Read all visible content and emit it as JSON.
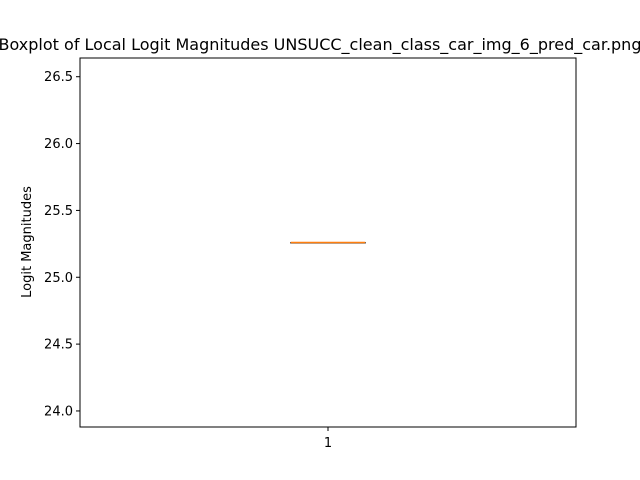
{
  "chart_data": {
    "type": "boxplot",
    "title": "Boxplot of Local Logit Magnitudes UNSUCC_clean_class_car_img_6_pred_car.png",
    "xlabel": "",
    "ylabel": "Logit Magnitudes",
    "categories": [
      "1"
    ],
    "boxes": [
      {
        "category": "1",
        "min": 25.26,
        "q1": 25.26,
        "median": 25.26,
        "q3": 25.26,
        "max": 25.26
      }
    ],
    "ylim": [
      23.88,
      26.64
    ],
    "yticks": [
      24.0,
      24.5,
      25.0,
      25.5,
      26.0,
      26.5
    ],
    "ytick_labels": [
      "24.0",
      "24.5",
      "25.0",
      "25.5",
      "26.0",
      "26.5"
    ],
    "grid": false,
    "colors": {
      "box": "#000000",
      "median": "#ff7f0e",
      "axes": "#000000"
    }
  }
}
